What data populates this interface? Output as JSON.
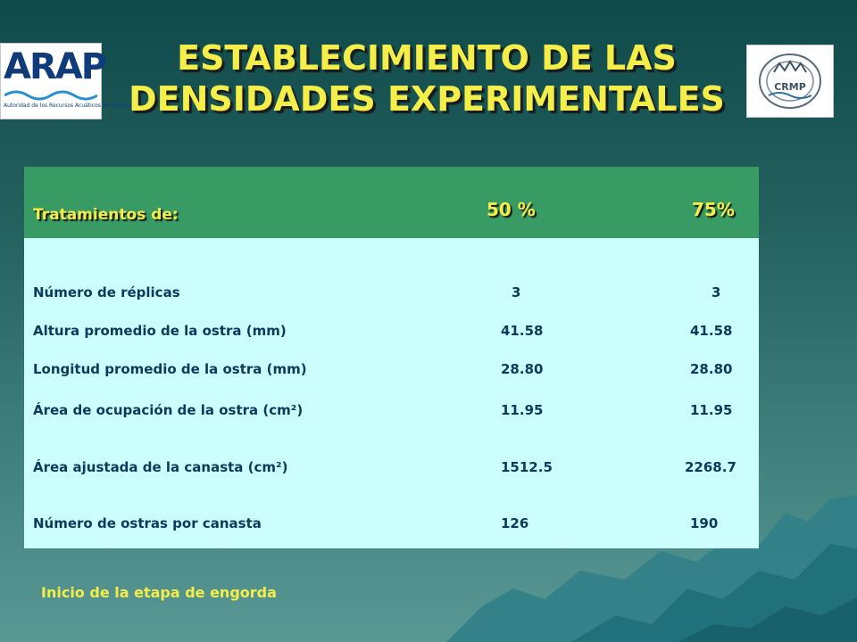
{
  "title": {
    "line1": "ESTABLECIMIENTO DE LAS",
    "line2": "DENSIDADES EXPERIMENTALES"
  },
  "logos": {
    "left_text": "ARAP",
    "left_subtitle": "Autoridad de los Recursos Acuáticos de Panamá",
    "right_text": "CRMP"
  },
  "table": {
    "headers": [
      "Tratamientos de:",
      "50 %",
      "75%"
    ],
    "rows": [
      {
        "label": "Número de réplicas",
        "v50": "3",
        "v75": "3"
      },
      {
        "label": "Altura promedio de la ostra (mm)",
        "v50": "41.58",
        "v75": "41.58"
      },
      {
        "label": "Longitud promedio de la ostra (mm)",
        "v50": "28.80",
        "v75": "28.80"
      },
      {
        "label": "Área de ocupación de la ostra (cm²)",
        "v50": "11.95",
        "v75": "11.95"
      },
      {
        "label": "Área ajustada de la canasta (cm²)",
        "v50": "1512.5",
        "v75": "2268.7"
      },
      {
        "label": "Número de ostras por canasta",
        "v50": "126",
        "v75": "190"
      }
    ]
  },
  "footer": "Inicio de la etapa de engorda",
  "colors": {
    "title": "#f4ee4a",
    "header_bg": "#379b63",
    "body_bg": "#ccfefe",
    "cell_text": "#0d3a5c"
  }
}
